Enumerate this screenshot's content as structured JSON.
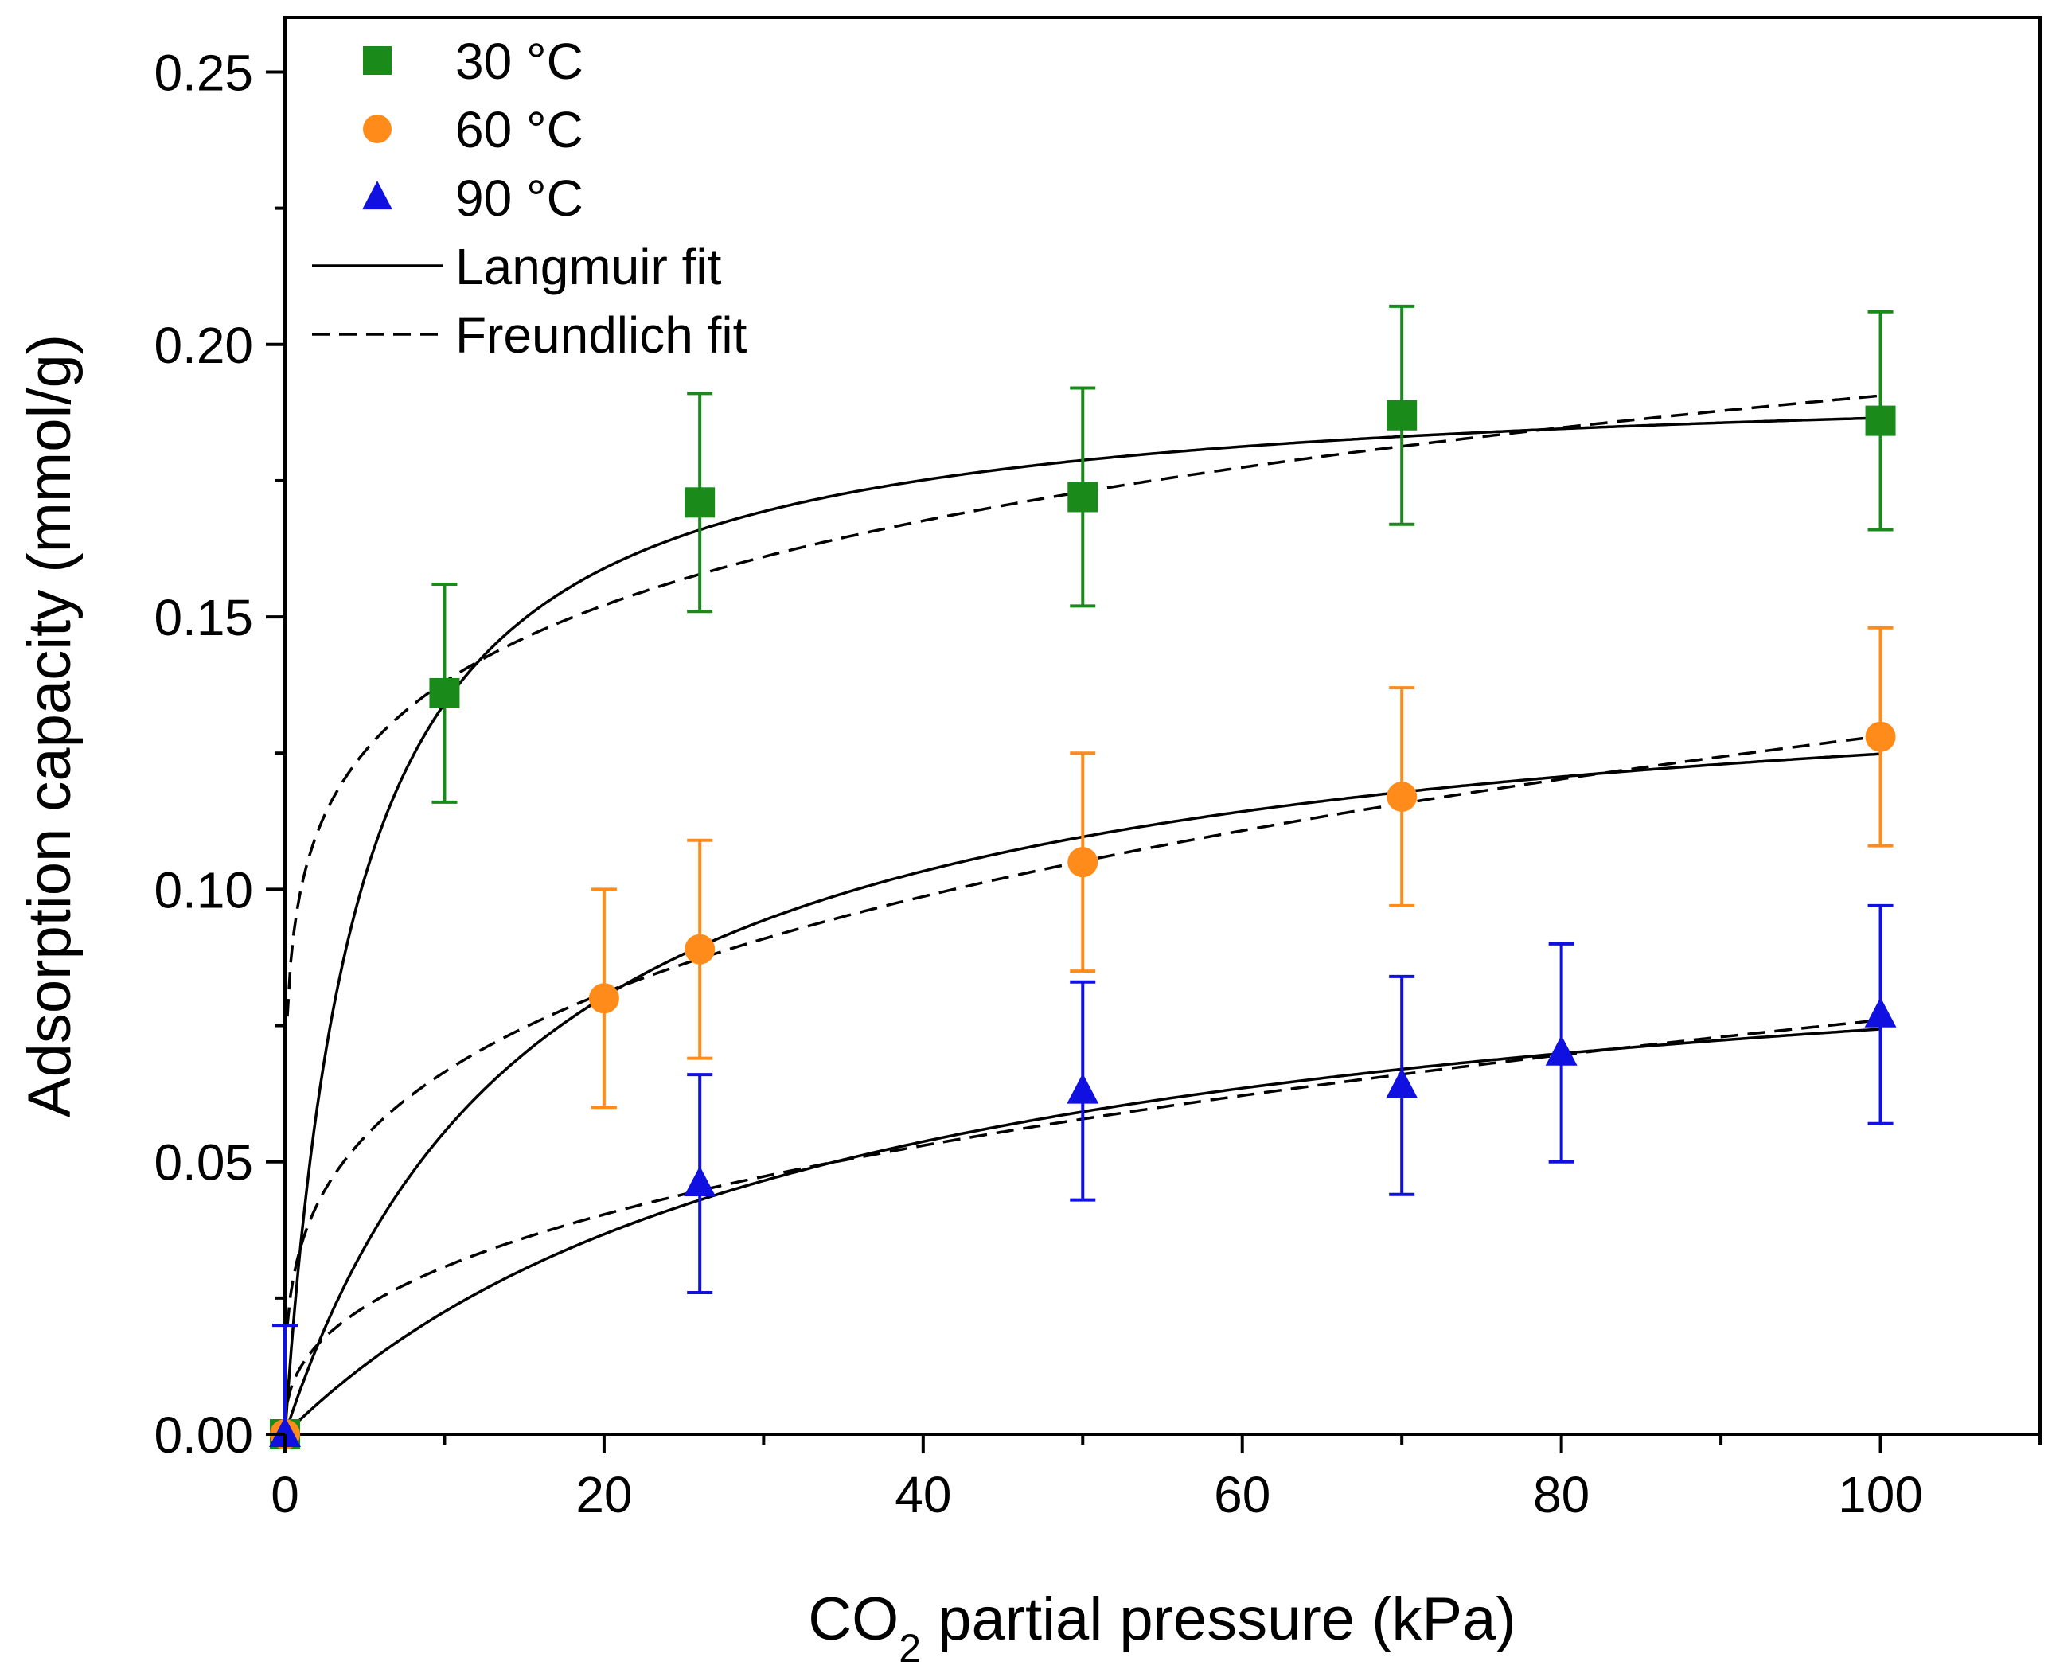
{
  "chart_data": {
    "type": "scatter",
    "xlabel": "CO2 partial pressure (kPa)",
    "xlabel_main": "CO",
    "xlabel_sub": "2",
    "xlabel_rest": " partial pressure (kPa)",
    "ylabel": "Adsorption capacity (mmol/g)",
    "xlim": [
      0,
      110
    ],
    "ylim": [
      0,
      0.26
    ],
    "x_ticks": [
      0,
      20,
      40,
      60,
      80,
      100
    ],
    "x_tick_labels": [
      "0",
      "20",
      "40",
      "60",
      "80",
      "100"
    ],
    "x_minor_ticks": [
      10,
      30,
      50,
      70,
      90,
      110
    ],
    "y_ticks": [
      0,
      0.05,
      0.1,
      0.15,
      0.2,
      0.25
    ],
    "y_tick_labels": [
      "0.00",
      "0.05",
      "0.10",
      "0.15",
      "0.20",
      "0.25"
    ],
    "y_minor_ticks": [
      0.025,
      0.075,
      0.125,
      0.175,
      0.225
    ],
    "legend_position": "top-left",
    "series": [
      {
        "name": "30 °C",
        "color": "#1a8a1a",
        "marker": "square",
        "x": [
          0,
          10,
          26,
          50,
          70,
          100
        ],
        "y": [
          0,
          0.136,
          0.171,
          0.172,
          0.187,
          0.186
        ],
        "error": [
          0,
          0.02,
          0.02,
          0.02,
          0.02,
          0.02
        ],
        "langmuir": {
          "qmax": 0.195,
          "K": 0.22
        },
        "freundlich": {
          "Kf": 0.1,
          "n": 7.14
        }
      },
      {
        "name": "60 °C",
        "color": "#ff8c1a",
        "marker": "circle",
        "x": [
          0,
          20,
          26,
          50,
          70,
          100
        ],
        "y": [
          0,
          0.08,
          0.089,
          0.105,
          0.117,
          0.128
        ],
        "error": [
          0,
          0.02,
          0.02,
          0.02,
          0.02,
          0.02
        ],
        "langmuir": {
          "qmax": 0.145,
          "K": 0.062
        },
        "freundlich": {
          "Kf": 0.0345,
          "n": 3.51
        }
      },
      {
        "name": "90 °C",
        "color": "#1010e0",
        "marker": "triangle",
        "x": [
          0,
          26,
          50,
          70,
          80,
          100
        ],
        "y": [
          0,
          0.046,
          0.063,
          0.064,
          0.07,
          0.077
        ],
        "error": [
          0.02,
          0.02,
          0.02,
          0.02,
          0.02,
          0.02
        ],
        "langmuir": {
          "qmax": 0.1,
          "K": 0.029
        },
        "freundlich": {
          "Kf": 0.0124,
          "n": 2.54
        }
      }
    ],
    "legend_lines": [
      {
        "label": "Langmuir fit",
        "style": "solid"
      },
      {
        "label": "Freundlich fit",
        "style": "dashed"
      }
    ]
  }
}
